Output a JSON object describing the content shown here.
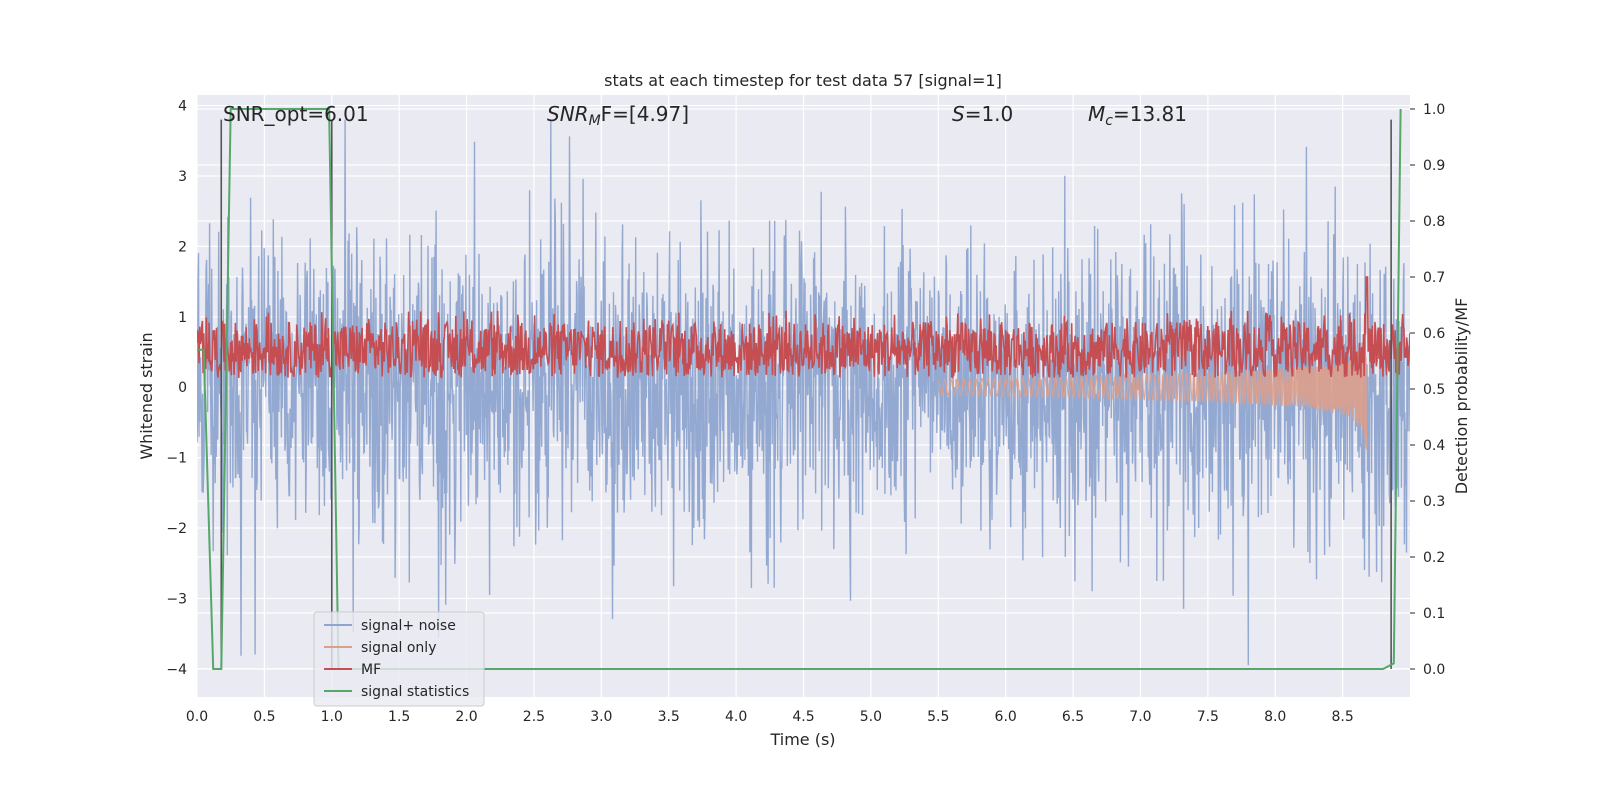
{
  "chart_data": {
    "type": "line",
    "title": "stats at each timestep for test data 57 [signal=1]",
    "xlabel": "Time (s)",
    "ylabel": "Whitened strain",
    "y2label": "Detection probability/MF",
    "xlim": [
      0.0,
      9.0
    ],
    "ylim": [
      -4.4,
      4.15
    ],
    "y2lim": [
      -0.05,
      1.025
    ],
    "xticks": [
      "0.0",
      "0.5",
      "1.0",
      "1.5",
      "2.0",
      "2.5",
      "3.0",
      "3.5",
      "4.0",
      "4.5",
      "5.0",
      "5.5",
      "6.0",
      "6.5",
      "7.0",
      "7.5",
      "8.0",
      "8.5"
    ],
    "yticks": [
      "4",
      "3",
      "2",
      "1",
      "0",
      "−1",
      "−2",
      "−3",
      "−4"
    ],
    "y2ticks": [
      "1.0",
      "0.9",
      "0.8",
      "0.7",
      "0.6",
      "0.5",
      "0.4",
      "0.3",
      "0.2",
      "0.1",
      "0.0"
    ],
    "grid": true,
    "legend_position": "lower-left",
    "annotations": {
      "snr_opt": "SNR_opt=6.01",
      "snr_mf_symbol": "SNR",
      "snr_mf_sub": "M",
      "snr_mf_tail": "F=[4.97]",
      "s_symbol": "S",
      "s_tail": "=1.0",
      "mc_symbol": "M",
      "mc_sub": "c",
      "mc_tail": "=13.81"
    },
    "series": [
      {
        "name": "signal+ noise",
        "color": "#8fa5cf",
        "style": "noise",
        "amplitude_range": [
          -4.0,
          3.8
        ]
      },
      {
        "name": "signal only",
        "color": "#dd9f8b",
        "style": "chirp",
        "start": 5.5,
        "peak_time": 8.68,
        "peak_amplitude": 1.2,
        "min_amplitude": -0.95
      },
      {
        "name": "MF",
        "color": "#c44e52",
        "style": "band",
        "axis": "right",
        "range": [
          0.52,
          0.62
        ],
        "peak": {
          "x": 8.68,
          "y": 0.7
        }
      },
      {
        "name": "signal statistics",
        "color": "#55a868",
        "axis": "right",
        "x": [
          0.0,
          0.05,
          0.12,
          0.18,
          0.25,
          0.98,
          1.05,
          8.8,
          8.88,
          8.93
        ],
        "y": [
          0.57,
          0.57,
          0.0,
          0.0,
          1.0,
          1.0,
          0.0,
          0.0,
          0.01,
          1.0
        ]
      }
    ],
    "vertical_markers_x": [
      0.18,
      1.0,
      8.86
    ]
  }
}
